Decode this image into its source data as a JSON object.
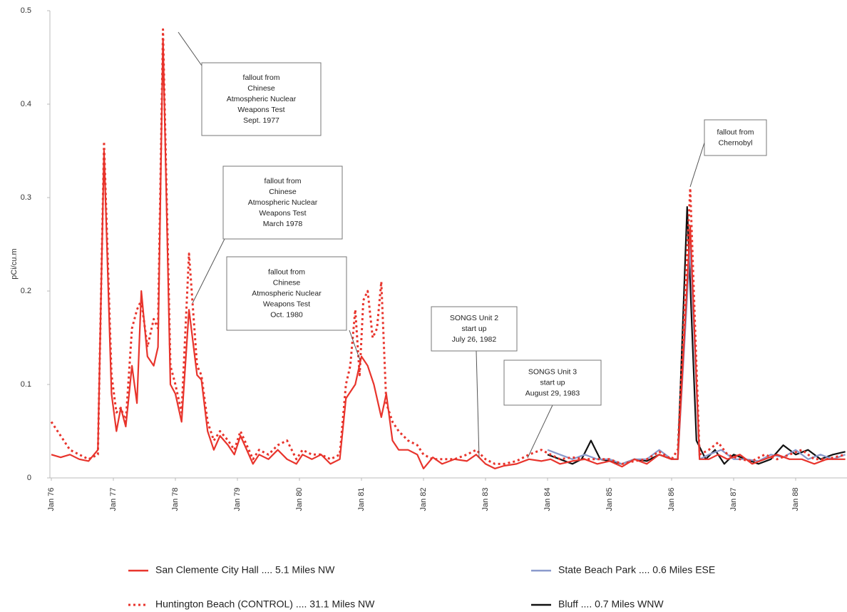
{
  "chart_data": {
    "type": "line",
    "y_label": "pCi/cu.m",
    "xlim": [
      76,
      88.8
    ],
    "xticks": [
      {
        "value": 76,
        "label": "Jan 76"
      },
      {
        "value": 77,
        "label": "Jan 77"
      },
      {
        "value": 78,
        "label": "Jan 78"
      },
      {
        "value": 79,
        "label": "Jan 79"
      },
      {
        "value": 80,
        "label": "Jan 80"
      },
      {
        "value": 81,
        "label": "Jan 81"
      },
      {
        "value": 82,
        "label": "Jan 82"
      },
      {
        "value": 83,
        "label": "Jan 83"
      },
      {
        "value": 84,
        "label": "Jan 84"
      },
      {
        "value": 85,
        "label": "Jan 85"
      },
      {
        "value": 86,
        "label": "Jan 86"
      },
      {
        "value": 87,
        "label": "Jan 87"
      },
      {
        "value": 88,
        "label": "Jan 88"
      }
    ],
    "ylim": [
      0,
      0.5
    ],
    "yticks": [
      0,
      0.1,
      0.2,
      0.3,
      0.4,
      0.5
    ],
    "series": [
      {
        "name": "Bluff .... 0.7 Miles WNW",
        "color": "#111111",
        "dash": "solid",
        "x": [
          84.0,
          84.2,
          84.4,
          84.55,
          84.7,
          84.85,
          85.0,
          85.2,
          85.4,
          85.6,
          85.8,
          86.0,
          86.1,
          86.25,
          86.4,
          86.55,
          86.7,
          86.85,
          87.0,
          87.2,
          87.4,
          87.6,
          87.8,
          88.0,
          88.2,
          88.4,
          88.6,
          88.8
        ],
        "values": [
          0.025,
          0.02,
          0.015,
          0.02,
          0.04,
          0.02,
          0.018,
          0.015,
          0.02,
          0.018,
          0.025,
          0.02,
          0.02,
          0.29,
          0.04,
          0.02,
          0.03,
          0.015,
          0.025,
          0.02,
          0.015,
          0.02,
          0.035,
          0.025,
          0.03,
          0.02,
          0.025,
          0.028
        ]
      },
      {
        "name": "State Beach Park .... 0.6 Miles ESE",
        "color": "#8a9acc",
        "dash": "solid",
        "x": [
          84.0,
          84.2,
          84.4,
          84.6,
          84.8,
          85.0,
          85.2,
          85.4,
          85.6,
          85.8,
          86.0,
          86.1,
          86.3,
          86.45,
          86.6,
          86.8,
          87.0,
          87.2,
          87.4,
          87.6,
          87.8,
          88.0,
          88.2,
          88.4,
          88.6,
          88.8
        ],
        "values": [
          0.03,
          0.025,
          0.02,
          0.025,
          0.02,
          0.02,
          0.015,
          0.02,
          0.02,
          0.03,
          0.02,
          0.02,
          0.25,
          0.02,
          0.025,
          0.03,
          0.02,
          0.02,
          0.018,
          0.025,
          0.022,
          0.03,
          0.02,
          0.025,
          0.02,
          0.025
        ]
      },
      {
        "name": "San Clemente City Hall .... 5.1 Miles NW",
        "color": "#e8342c",
        "dash": "solid",
        "x": [
          76.0,
          76.15,
          76.3,
          76.45,
          76.6,
          76.75,
          76.85,
          76.97,
          77.05,
          77.12,
          77.2,
          77.3,
          77.38,
          77.45,
          77.55,
          77.65,
          77.72,
          77.8,
          77.92,
          78.0,
          78.1,
          78.22,
          78.35,
          78.42,
          78.52,
          78.62,
          78.72,
          78.85,
          78.95,
          79.05,
          79.15,
          79.25,
          79.35,
          79.5,
          79.65,
          79.8,
          79.95,
          80.05,
          80.2,
          80.35,
          80.5,
          80.65,
          80.75,
          80.9,
          81.0,
          81.1,
          81.2,
          81.32,
          81.4,
          81.5,
          81.6,
          81.75,
          81.9,
          82.0,
          82.15,
          82.3,
          82.5,
          82.7,
          82.85,
          83.0,
          83.15,
          83.3,
          83.5,
          83.7,
          83.9,
          84.05,
          84.2,
          84.4,
          84.6,
          84.8,
          85.0,
          85.2,
          85.4,
          85.6,
          85.8,
          86.0,
          86.1,
          86.3,
          86.45,
          86.6,
          86.75,
          86.9,
          87.1,
          87.3,
          87.5,
          87.7,
          87.9,
          88.1,
          88.3,
          88.5,
          88.8
        ],
        "values": [
          0.025,
          0.022,
          0.025,
          0.02,
          0.018,
          0.03,
          0.35,
          0.09,
          0.05,
          0.075,
          0.055,
          0.12,
          0.08,
          0.2,
          0.13,
          0.12,
          0.14,
          0.47,
          0.1,
          0.09,
          0.06,
          0.18,
          0.11,
          0.105,
          0.05,
          0.03,
          0.045,
          0.035,
          0.025,
          0.045,
          0.03,
          0.015,
          0.025,
          0.02,
          0.03,
          0.02,
          0.015,
          0.025,
          0.02,
          0.025,
          0.015,
          0.02,
          0.085,
          0.1,
          0.13,
          0.12,
          0.1,
          0.065,
          0.09,
          0.04,
          0.03,
          0.03,
          0.025,
          0.01,
          0.022,
          0.015,
          0.02,
          0.018,
          0.025,
          0.015,
          0.01,
          0.013,
          0.015,
          0.02,
          0.018,
          0.02,
          0.015,
          0.018,
          0.02,
          0.015,
          0.018,
          0.012,
          0.02,
          0.015,
          0.025,
          0.02,
          0.02,
          0.27,
          0.02,
          0.02,
          0.025,
          0.02,
          0.025,
          0.015,
          0.02,
          0.025,
          0.02,
          0.02,
          0.015,
          0.02,
          0.02
        ]
      },
      {
        "name": "Huntington Beach  (CONTROL) .... 31.1 Miles NW",
        "color": "#e8342c",
        "dash": "dotted",
        "x": [
          76.0,
          76.15,
          76.3,
          76.45,
          76.6,
          76.75,
          76.85,
          76.97,
          77.05,
          77.12,
          77.2,
          77.3,
          77.38,
          77.45,
          77.55,
          77.65,
          77.72,
          77.8,
          77.92,
          78.0,
          78.1,
          78.22,
          78.35,
          78.42,
          78.52,
          78.62,
          78.72,
          78.85,
          78.95,
          79.05,
          79.15,
          79.25,
          79.35,
          79.5,
          79.65,
          79.8,
          79.95,
          80.05,
          80.2,
          80.35,
          80.5,
          80.65,
          80.75,
          80.82,
          80.9,
          80.97,
          81.03,
          81.1,
          81.18,
          81.25,
          81.32,
          81.4,
          81.5,
          81.6,
          81.75,
          81.9,
          82.0,
          82.15,
          82.3,
          82.5,
          82.7,
          82.85,
          83.0,
          83.15,
          83.3,
          83.5,
          83.7,
          83.9,
          84.05,
          84.2,
          84.4,
          84.6,
          84.8,
          85.0,
          85.2,
          85.4,
          85.6,
          85.8,
          86.0,
          86.1,
          86.3,
          86.45,
          86.6,
          86.75,
          86.9,
          87.1,
          87.3,
          87.5,
          87.7,
          87.9,
          88.1,
          88.3,
          88.5,
          88.8
        ],
        "values": [
          0.06,
          0.045,
          0.03,
          0.025,
          0.02,
          0.025,
          0.36,
          0.11,
          0.07,
          0.075,
          0.06,
          0.16,
          0.18,
          0.19,
          0.14,
          0.17,
          0.16,
          0.48,
          0.12,
          0.1,
          0.07,
          0.24,
          0.12,
          0.11,
          0.06,
          0.04,
          0.05,
          0.04,
          0.03,
          0.05,
          0.035,
          0.02,
          0.03,
          0.025,
          0.035,
          0.04,
          0.02,
          0.03,
          0.025,
          0.025,
          0.02,
          0.025,
          0.1,
          0.12,
          0.18,
          0.11,
          0.19,
          0.2,
          0.15,
          0.16,
          0.21,
          0.08,
          0.06,
          0.05,
          0.04,
          0.035,
          0.025,
          0.02,
          0.02,
          0.02,
          0.025,
          0.03,
          0.02,
          0.015,
          0.015,
          0.018,
          0.025,
          0.03,
          0.025,
          0.02,
          0.022,
          0.02,
          0.02,
          0.02,
          0.015,
          0.018,
          0.02,
          0.028,
          0.02,
          0.03,
          0.31,
          0.025,
          0.03,
          0.038,
          0.025,
          0.02,
          0.018,
          0.025,
          0.02,
          0.025,
          0.03,
          0.02,
          0.02,
          0.025
        ]
      }
    ],
    "legend_order": [
      2,
      1,
      3,
      0
    ],
    "annotations": [
      {
        "lines": [
          "fallout from",
          "Chinese",
          "Atmospheric Nuclear",
          "Weapons Test",
          "Sept. 1977"
        ]
      },
      {
        "lines": [
          "fallout from",
          "Chinese",
          "Atmospheric Nuclear",
          "Weapons Test",
          "March 1978"
        ]
      },
      {
        "lines": [
          "fallout from",
          "Chinese",
          "Atmospheric Nuclear",
          "Weapons Test",
          "Oct. 1980"
        ]
      },
      {
        "lines": [
          "SONGS Unit 2",
          "start up",
          "July 26, 1982"
        ]
      },
      {
        "lines": [
          "SONGS Unit 3",
          "start up",
          "August 29, 1983"
        ]
      },
      {
        "lines": [
          "fallout from",
          "Chernobyl"
        ]
      }
    ]
  }
}
